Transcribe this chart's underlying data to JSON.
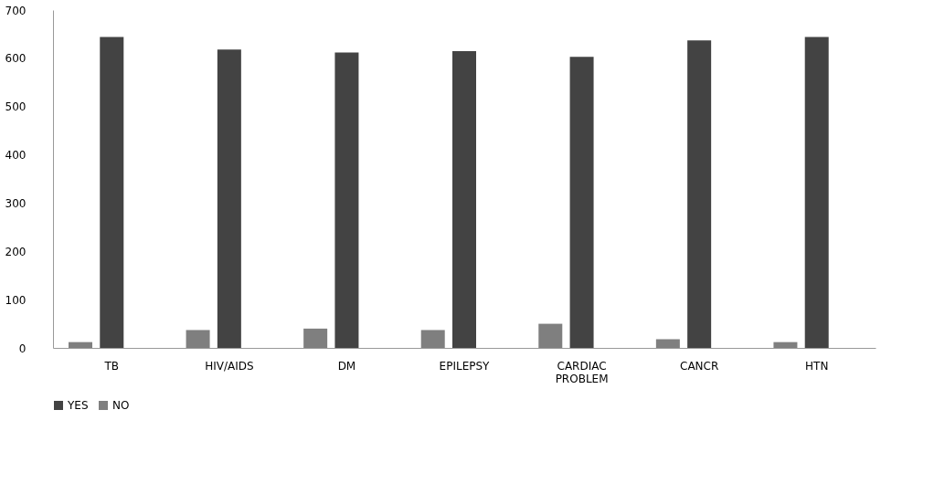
{
  "chart_data": {
    "type": "bar",
    "categories": [
      "TB",
      "HIV/AIDS",
      "DM",
      "EPILEPSY",
      "CARDIAC PROBLEM",
      "CANCR",
      "HTN"
    ],
    "series": [
      {
        "name": "YES",
        "color": "#434343",
        "values": [
          644,
          618,
          612,
          615,
          603,
          637,
          644
        ]
      },
      {
        "name": "NO",
        "color": "#7f7f7f",
        "values": [
          12,
          37,
          40,
          37,
          50,
          18,
          12
        ]
      }
    ],
    "ylim": [
      0,
      700
    ],
    "yticks": [
      0,
      100,
      200,
      300,
      400,
      500,
      600,
      700
    ],
    "grid": false,
    "legend": "bottom"
  }
}
